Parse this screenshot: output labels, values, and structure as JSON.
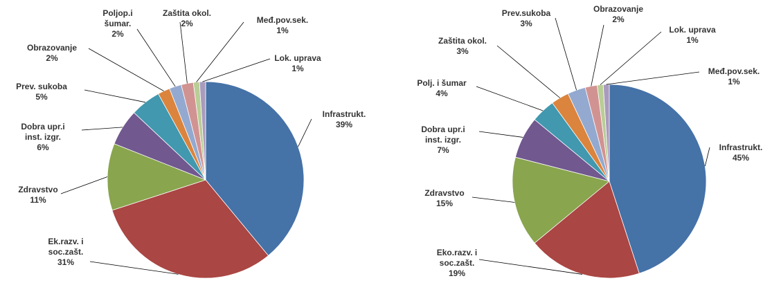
{
  "chart_data": [
    {
      "type": "pie",
      "categories": [
        "Infrastrukt.",
        "Ek.razv. i\nsoc.zašt.",
        "Zdravstvo",
        "Dobra upr.i\ninst. izgr.",
        "Prev. sukoba",
        "Obrazovanje",
        "Poljop.i\nšumar.",
        "Zaštita okol.",
        "Međ.pov.sek.",
        "Lok. uprava"
      ],
      "values": [
        39,
        31,
        11,
        6,
        5,
        2,
        2,
        2,
        1,
        1
      ],
      "value_labels": [
        "39%",
        "31%",
        "11%",
        "6%",
        "5%",
        "2%",
        "2%",
        "2%",
        "1%",
        "1%"
      ],
      "colors": [
        "#4572a7",
        "#aa4643",
        "#89a54e",
        "#71588f",
        "#4198af",
        "#db843d",
        "#93a9cf",
        "#d19392",
        "#b9cd96",
        "#a99bbd"
      ]
    },
    {
      "type": "pie",
      "categories": [
        "Infrastrukt.",
        "Eko.razv. i\nsoc.zašt.",
        "Zdravstvo",
        "Dobra upr.i\ninst. izgr.",
        "Polj. i šumar",
        "Zaštita okol.",
        "Prev.sukoba",
        "Obrazovanje",
        "Lok. uprava",
        "Međ.pov.sek."
      ],
      "values": [
        45,
        19,
        15,
        7,
        4,
        3,
        3,
        2,
        1,
        1
      ],
      "value_labels": [
        "45%",
        "19%",
        "15%",
        "7%",
        "4%",
        "3%",
        "3%",
        "2%",
        "1%",
        "1%"
      ],
      "colors": [
        "#4572a7",
        "#aa4643",
        "#89a54e",
        "#71588f",
        "#4198af",
        "#db843d",
        "#93a9cf",
        "#d19392",
        "#b9cd96",
        "#a99bbd"
      ]
    }
  ]
}
